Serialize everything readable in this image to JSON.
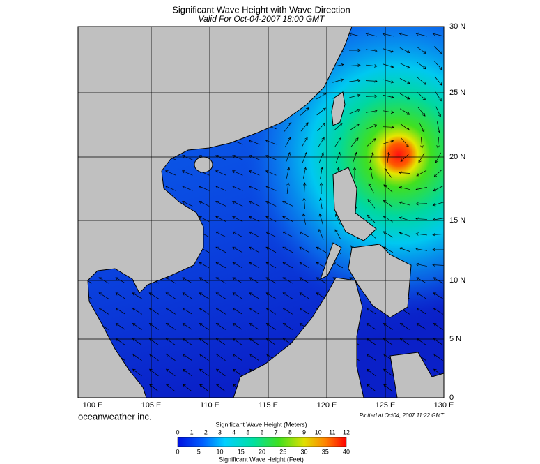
{
  "header": {
    "title": "Significant Wave Height with Wave Direction",
    "subtitle": "Valid For Oct-04-2007 18:00 GMT"
  },
  "map": {
    "lon_labels": [
      "100 E",
      "105 E",
      "110 E",
      "115 E",
      "120 E",
      "125 E",
      "130 E"
    ],
    "lat_labels": [
      "30 N",
      "25 N",
      "20 N",
      "15 N",
      "10 N",
      "5 N",
      "0"
    ]
  },
  "footer": {
    "brand": "oceanweather inc.",
    "plotted": "Plotted at Oct04, 2007 11:22 GMT"
  },
  "colorbar": {
    "meters_title": "Significant Wave Height (Meters)",
    "meters_ticks": [
      0,
      1,
      2,
      3,
      4,
      5,
      6,
      7,
      8,
      9,
      10,
      11,
      12
    ],
    "feet_ticks": [
      0,
      5,
      10,
      15,
      20,
      25,
      30,
      35,
      40
    ],
    "feet_title": "Significant Wave Height (Feet)"
  }
}
